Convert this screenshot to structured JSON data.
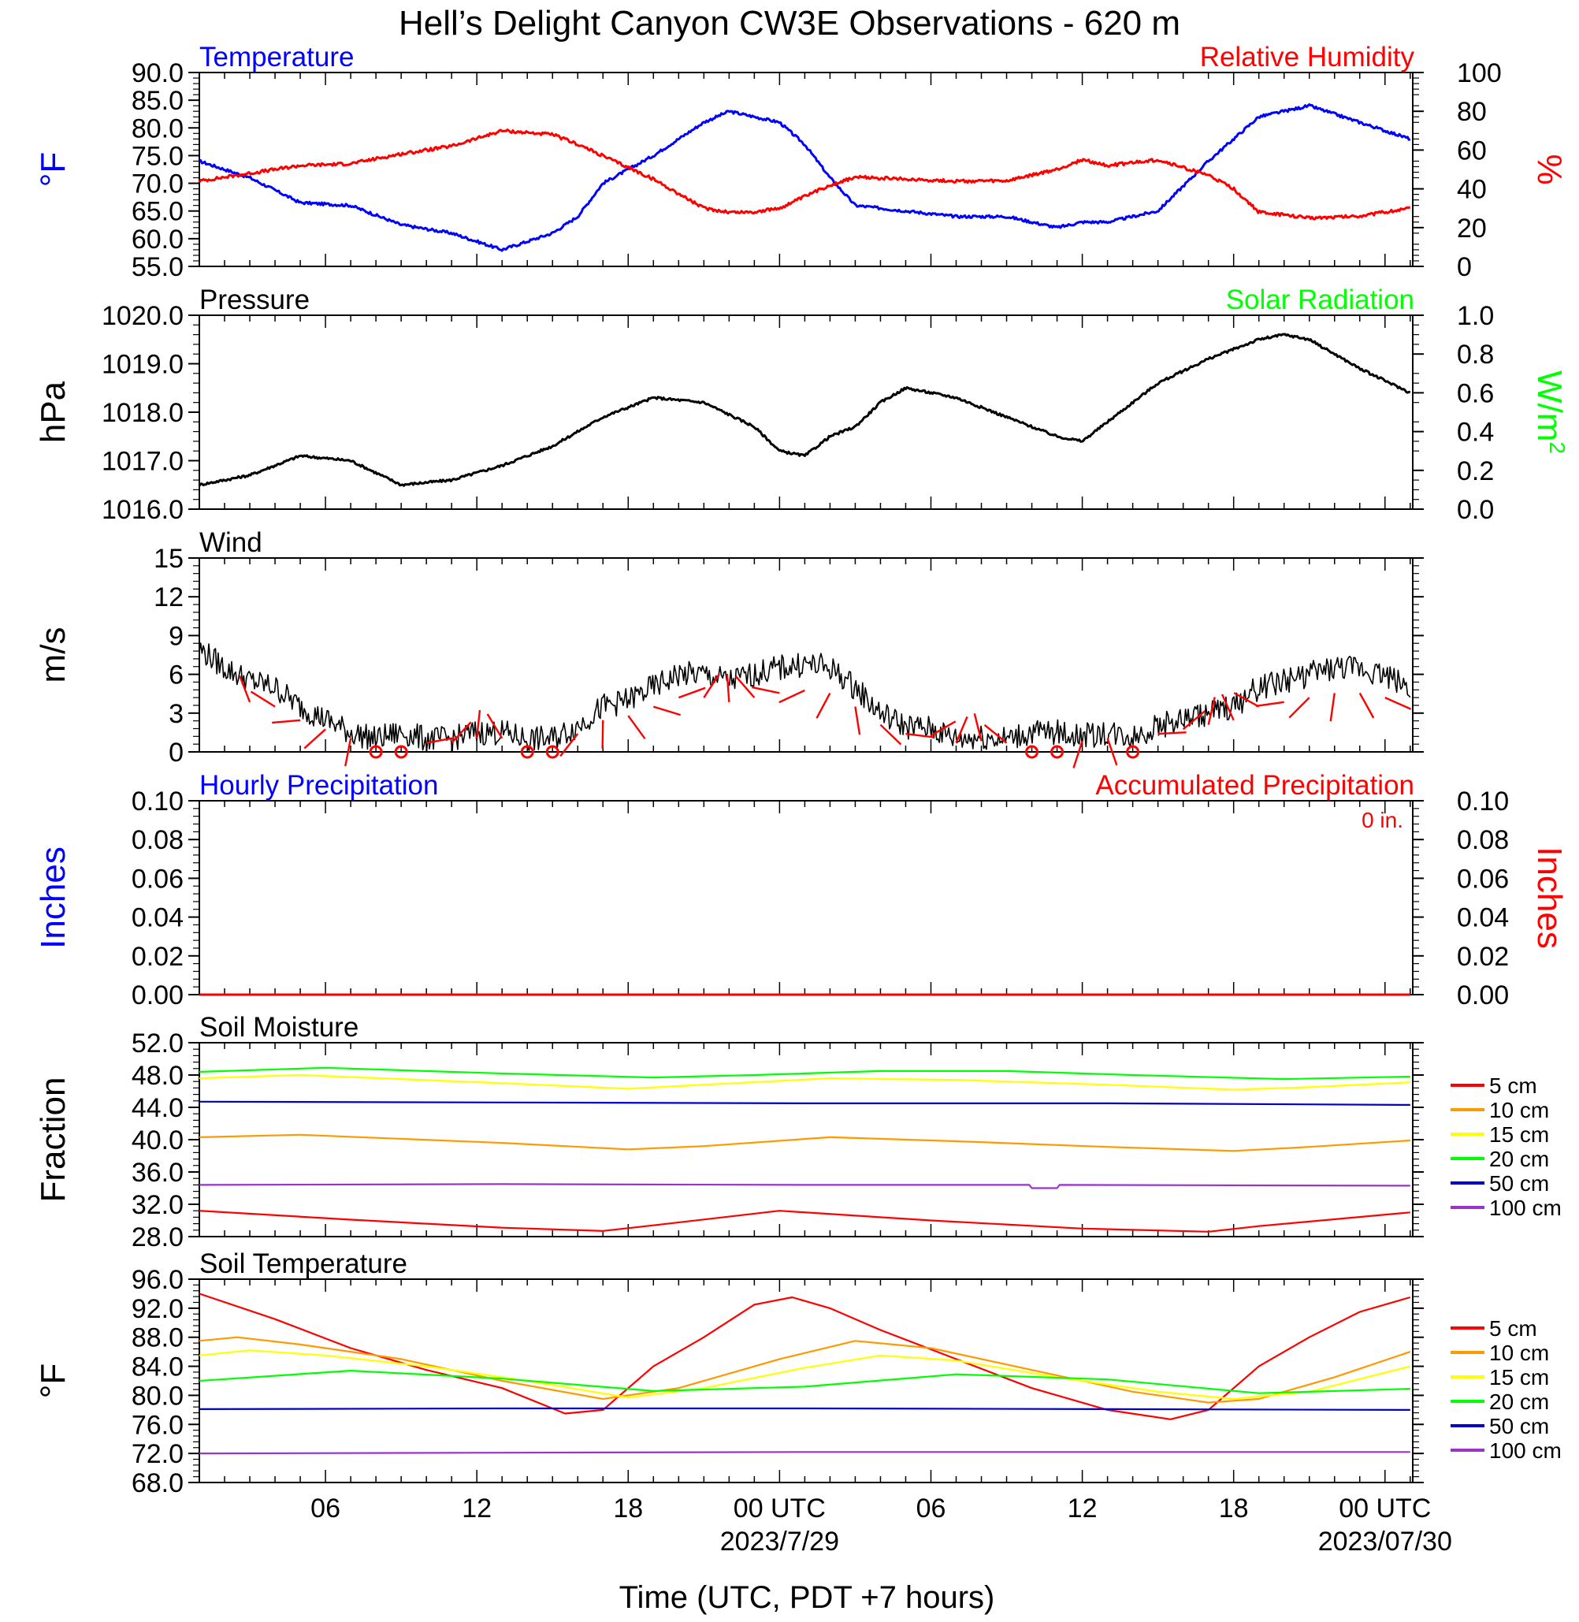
{
  "title": "Hell’s Delight Canyon CW3E Observations - 620 m",
  "xlabel": "Time (UTC, PDT +7 hours)",
  "time_axis": {
    "start_hour": 1,
    "end_hour": 49.1,
    "tick_labels": [
      {
        "hour": 6,
        "label": "06"
      },
      {
        "hour": 12,
        "label": "12"
      },
      {
        "hour": 18,
        "label": "18"
      },
      {
        "hour": 24,
        "label": "00 UTC",
        "date": "2023/7/29"
      },
      {
        "hour": 30,
        "label": "06"
      },
      {
        "hour": 36,
        "label": "12"
      },
      {
        "hour": 42,
        "label": "18"
      },
      {
        "hour": 48,
        "label": "00 UTC",
        "date": "2023/07/30"
      }
    ]
  },
  "colors": {
    "blue": "#0000ff",
    "red": "#ff0000",
    "green": "#00ff00",
    "black": "#000000",
    "orange": "#ff9900",
    "yellow": "#ffff00",
    "purple": "#9933cc",
    "navy": "#0000cc"
  },
  "chart_data": [
    {
      "type": "line",
      "id": "temperature-rh",
      "title_left": "Temperature",
      "title_right": "Relative Humidity",
      "ylabel_left": "°F",
      "ylabel_right": "%",
      "ylim_left": [
        55,
        90
      ],
      "ylim_right": [
        0,
        100
      ],
      "yticks_left": [
        "90.0",
        "85.0",
        "80.0",
        "75.0",
        "70.0",
        "65.0",
        "60.0",
        "55.0"
      ],
      "yticks_right": [
        "100",
        "80",
        "60",
        "40",
        "20",
        "0"
      ],
      "series": [
        {
          "name": "Temperature",
          "axis": "left",
          "color": "#0000ff",
          "x": [
            1,
            3,
            5,
            7,
            9,
            11,
            13,
            15,
            16,
            17,
            19,
            21,
            22,
            23,
            24,
            25,
            26,
            27,
            29,
            31,
            33,
            35,
            36,
            37,
            39,
            41,
            42,
            43,
            45,
            47,
            49
          ],
          "y": [
            74,
            71,
            66.5,
            66,
            62.5,
            61,
            58,
            61,
            64,
            70,
            75,
            81,
            83,
            82,
            81,
            77,
            71,
            66,
            65,
            64,
            64,
            62,
            63,
            63,
            65,
            74,
            78,
            82,
            84,
            81,
            78
          ]
        },
        {
          "name": "Relative Humidity",
          "axis": "right",
          "color": "#ff0000",
          "x": [
            1,
            3,
            5,
            7,
            9,
            11,
            13,
            15,
            16,
            17,
            19,
            21,
            22,
            23,
            24,
            25,
            26,
            27,
            29,
            31,
            33,
            35,
            36,
            37,
            39,
            41,
            42,
            43,
            45,
            47,
            49
          ],
          "y": [
            44,
            48,
            52,
            53,
            58,
            62,
            70,
            68,
            63,
            57,
            45,
            30,
            28,
            28,
            30,
            36,
            42,
            46,
            45,
            44,
            44,
            50,
            55,
            52,
            55,
            47,
            40,
            28,
            25,
            26,
            30
          ]
        }
      ]
    },
    {
      "type": "line",
      "id": "pressure",
      "title_left": "Pressure",
      "title_right": "Solar Radiation",
      "ylabel_left": "hPa",
      "ylabel_right": "W/m",
      "ylabel_right_sup": "2",
      "ylim_left": [
        1016.0,
        1020.0
      ],
      "ylim_right": [
        0.0,
        1.0
      ],
      "yticks_left": [
        "1020.0",
        "1019.0",
        "1018.0",
        "1017.0",
        "1016.0"
      ],
      "yticks_right": [
        "1.0",
        "0.8",
        "0.6",
        "0.4",
        "0.2",
        "0.0"
      ],
      "series": [
        {
          "name": "Pressure",
          "axis": "left",
          "color": "#000000",
          "x": [
            1,
            3,
            5,
            7,
            9,
            11,
            13,
            15,
            17,
            19,
            21,
            23,
            24,
            25,
            26,
            27,
            28,
            29,
            31,
            33,
            35,
            36,
            37,
            39,
            41,
            43,
            44,
            45,
            47,
            49
          ],
          "y": [
            1016.5,
            1016.7,
            1017.1,
            1017.0,
            1016.5,
            1016.6,
            1016.9,
            1017.3,
            1017.9,
            1018.3,
            1018.2,
            1017.7,
            1017.2,
            1017.1,
            1017.5,
            1017.7,
            1018.2,
            1018.5,
            1018.3,
            1017.9,
            1017.5,
            1017.4,
            1017.8,
            1018.6,
            1019.1,
            1019.5,
            1019.6,
            1019.5,
            1018.9,
            1018.4
          ]
        }
      ]
    },
    {
      "type": "line",
      "id": "wind",
      "title_left": "Wind",
      "ylabel_left": "m/s",
      "ylim_left": [
        0,
        15
      ],
      "yticks_left": [
        "15",
        "12",
        "9",
        "6",
        "3",
        "0"
      ],
      "series": [
        {
          "name": "Wind speed",
          "axis": "left",
          "color": "#000000",
          "x": [
            1,
            2,
            3,
            4,
            5,
            6,
            7,
            8,
            9,
            10,
            11,
            12,
            13,
            14,
            15,
            16,
            17,
            18,
            19,
            20,
            21,
            22,
            23,
            24,
            25,
            26,
            27,
            28,
            29,
            30,
            31,
            32,
            33,
            34,
            35,
            36,
            37,
            38,
            39,
            40,
            41,
            42,
            43,
            44,
            45,
            46,
            47,
            48,
            49
          ],
          "y": [
            8,
            6.5,
            5.5,
            5,
            3.5,
            2.5,
            1.5,
            1,
            1.5,
            1,
            1,
            1.5,
            1.5,
            1,
            1,
            2,
            3.5,
            4,
            5,
            6,
            6,
            5.5,
            6,
            6.5,
            6.8,
            6.5,
            5,
            3,
            2,
            1.8,
            1,
            1.2,
            1,
            1.5,
            1.5,
            1.2,
            1.5,
            1.2,
            2,
            2.5,
            3,
            3.5,
            5,
            5.5,
            6,
            6.5,
            6.5,
            6,
            5
          ]
        }
      ],
      "calm_hours": [
        8,
        9,
        14,
        15,
        34,
        35,
        38
      ]
    },
    {
      "type": "line",
      "id": "precipitation",
      "title_left": "Hourly Precipitation",
      "title_right": "Accumulated Precipitation",
      "annotation": "0 in.",
      "ylabel_left": "Inches",
      "ylabel_right": "Inches",
      "ylim_left": [
        0.0,
        0.1
      ],
      "ylim_right": [
        0.0,
        0.1
      ],
      "yticks_left": [
        "0.10",
        "0.08",
        "0.06",
        "0.04",
        "0.02",
        "0.00"
      ],
      "yticks_right": [
        "0.10",
        "0.08",
        "0.06",
        "0.04",
        "0.02",
        "0.00"
      ],
      "series": [
        {
          "name": "Hourly Precipitation",
          "axis": "left",
          "color": "#0000ff",
          "x": [
            1,
            49
          ],
          "y": [
            0,
            0
          ]
        },
        {
          "name": "Accumulated Precipitation",
          "axis": "right",
          "color": "#ff0000",
          "x": [
            1,
            49
          ],
          "y": [
            0,
            0
          ]
        }
      ]
    },
    {
      "type": "line",
      "id": "soil-moisture",
      "title_left": "Soil Moisture",
      "ylabel_left": "Fraction",
      "ylim_left": [
        28.0,
        52.0
      ],
      "yticks_left": [
        "52.0",
        "48.0",
        "44.0",
        "40.0",
        "36.0",
        "32.0",
        "28.0"
      ],
      "series": [
        {
          "name": "5 cm",
          "color": "#ff0000",
          "x": [
            1,
            7,
            13,
            17,
            19,
            24,
            30,
            36,
            41,
            43,
            49
          ],
          "y": [
            31.2,
            30.1,
            29.1,
            28.7,
            29.4,
            31.2,
            30.0,
            29.0,
            28.6,
            29.3,
            31.0
          ]
        },
        {
          "name": "10 cm",
          "color": "#ff9900",
          "x": [
            1,
            5,
            13,
            18,
            21,
            26,
            31,
            37,
            42,
            45,
            49
          ],
          "y": [
            40.3,
            40.6,
            39.6,
            38.8,
            39.2,
            40.3,
            39.8,
            39.1,
            38.6,
            39.1,
            39.9
          ]
        },
        {
          "name": "15 cm",
          "color": "#ffff00",
          "x": [
            1,
            5,
            13,
            18,
            21,
            26,
            31,
            37,
            42,
            45,
            49
          ],
          "y": [
            47.6,
            48.0,
            47.0,
            46.3,
            46.8,
            47.6,
            47.4,
            46.8,
            46.2,
            46.5,
            47.1
          ]
        },
        {
          "name": "20 cm",
          "color": "#00ff00",
          "x": [
            1,
            6,
            13,
            19,
            23,
            28,
            33,
            38,
            44,
            49
          ],
          "y": [
            48.4,
            48.9,
            48.2,
            47.7,
            48.0,
            48.5,
            48.5,
            48.0,
            47.5,
            47.8
          ]
        },
        {
          "name": "50 cm",
          "color": "#0000cc",
          "x": [
            1,
            13,
            25,
            37,
            49
          ],
          "y": [
            44.7,
            44.6,
            44.5,
            44.5,
            44.3
          ]
        },
        {
          "name": "100 cm",
          "color": "#9933cc",
          "x": [
            1,
            13,
            25,
            33.9,
            34,
            35,
            35.1,
            49
          ],
          "y": [
            34.4,
            34.5,
            34.4,
            34.4,
            34.0,
            34.0,
            34.4,
            34.3
          ]
        }
      ]
    },
    {
      "type": "line",
      "id": "soil-temperature",
      "title_left": "Soil Temperature",
      "ylabel_left": "°F",
      "ylim_left": [
        68.0,
        96.0
      ],
      "yticks_left": [
        "96.0",
        "92.0",
        "88.0",
        "84.0",
        "80.0",
        "76.0",
        "72.0",
        "68.0"
      ],
      "series": [
        {
          "name": "5 cm",
          "color": "#ff0000",
          "x": [
            1,
            4,
            7,
            10,
            13,
            15.5,
            17,
            19,
            21,
            23,
            24.5,
            26,
            28,
            31,
            34,
            37,
            39.5,
            41,
            43,
            45,
            47,
            49
          ],
          "y": [
            94,
            90.5,
            86.5,
            83.5,
            81,
            77.5,
            78,
            84,
            88,
            92.5,
            93.5,
            92,
            89,
            85,
            81,
            78,
            76.7,
            78,
            84,
            88,
            91.5,
            93.5
          ]
        },
        {
          "name": "10 cm",
          "color": "#ff9900",
          "x": [
            1,
            2.5,
            5,
            9,
            13,
            17,
            20,
            24,
            27,
            30,
            34,
            38,
            41,
            43,
            46,
            49
          ],
          "y": [
            87.5,
            88,
            87,
            85,
            82,
            79.5,
            81,
            85,
            87.5,
            86.5,
            83.5,
            80.5,
            79,
            79.5,
            82.5,
            86
          ]
        },
        {
          "name": "15 cm",
          "color": "#ffff00",
          "x": [
            1,
            3,
            6,
            10,
            14,
            18,
            21,
            25,
            28,
            31,
            35,
            39,
            42,
            45,
            49
          ],
          "y": [
            85.5,
            86.2,
            85.5,
            84,
            82,
            79.7,
            81,
            83.8,
            85.5,
            84.8,
            82.5,
            80.5,
            79.5,
            80.5,
            84
          ]
        },
        {
          "name": "20 cm",
          "color": "#00ff00",
          "x": [
            1,
            7,
            13,
            19,
            25,
            31,
            37,
            43,
            49
          ],
          "y": [
            82,
            83.4,
            82.3,
            80.6,
            81.2,
            82.9,
            82.2,
            80.3,
            80.9
          ]
        },
        {
          "name": "50 cm",
          "color": "#0000cc",
          "x": [
            1,
            13,
            25,
            37,
            49
          ],
          "y": [
            78.1,
            78.2,
            78.2,
            78.1,
            78.0
          ]
        },
        {
          "name": "100 cm",
          "color": "#9933cc",
          "x": [
            1,
            13,
            25,
            37,
            49
          ],
          "y": [
            72.0,
            72.1,
            72.2,
            72.2,
            72.2
          ]
        }
      ]
    }
  ],
  "legend": {
    "placement": "right",
    "items": [
      {
        "label": "5 cm",
        "color": "#ff0000"
      },
      {
        "label": "10 cm",
        "color": "#ff9900"
      },
      {
        "label": "15 cm",
        "color": "#ffff00"
      },
      {
        "label": "20 cm",
        "color": "#00ff00"
      },
      {
        "label": "50 cm",
        "color": "#0000cc"
      },
      {
        "label": "100 cm",
        "color": "#9933cc"
      }
    ]
  }
}
